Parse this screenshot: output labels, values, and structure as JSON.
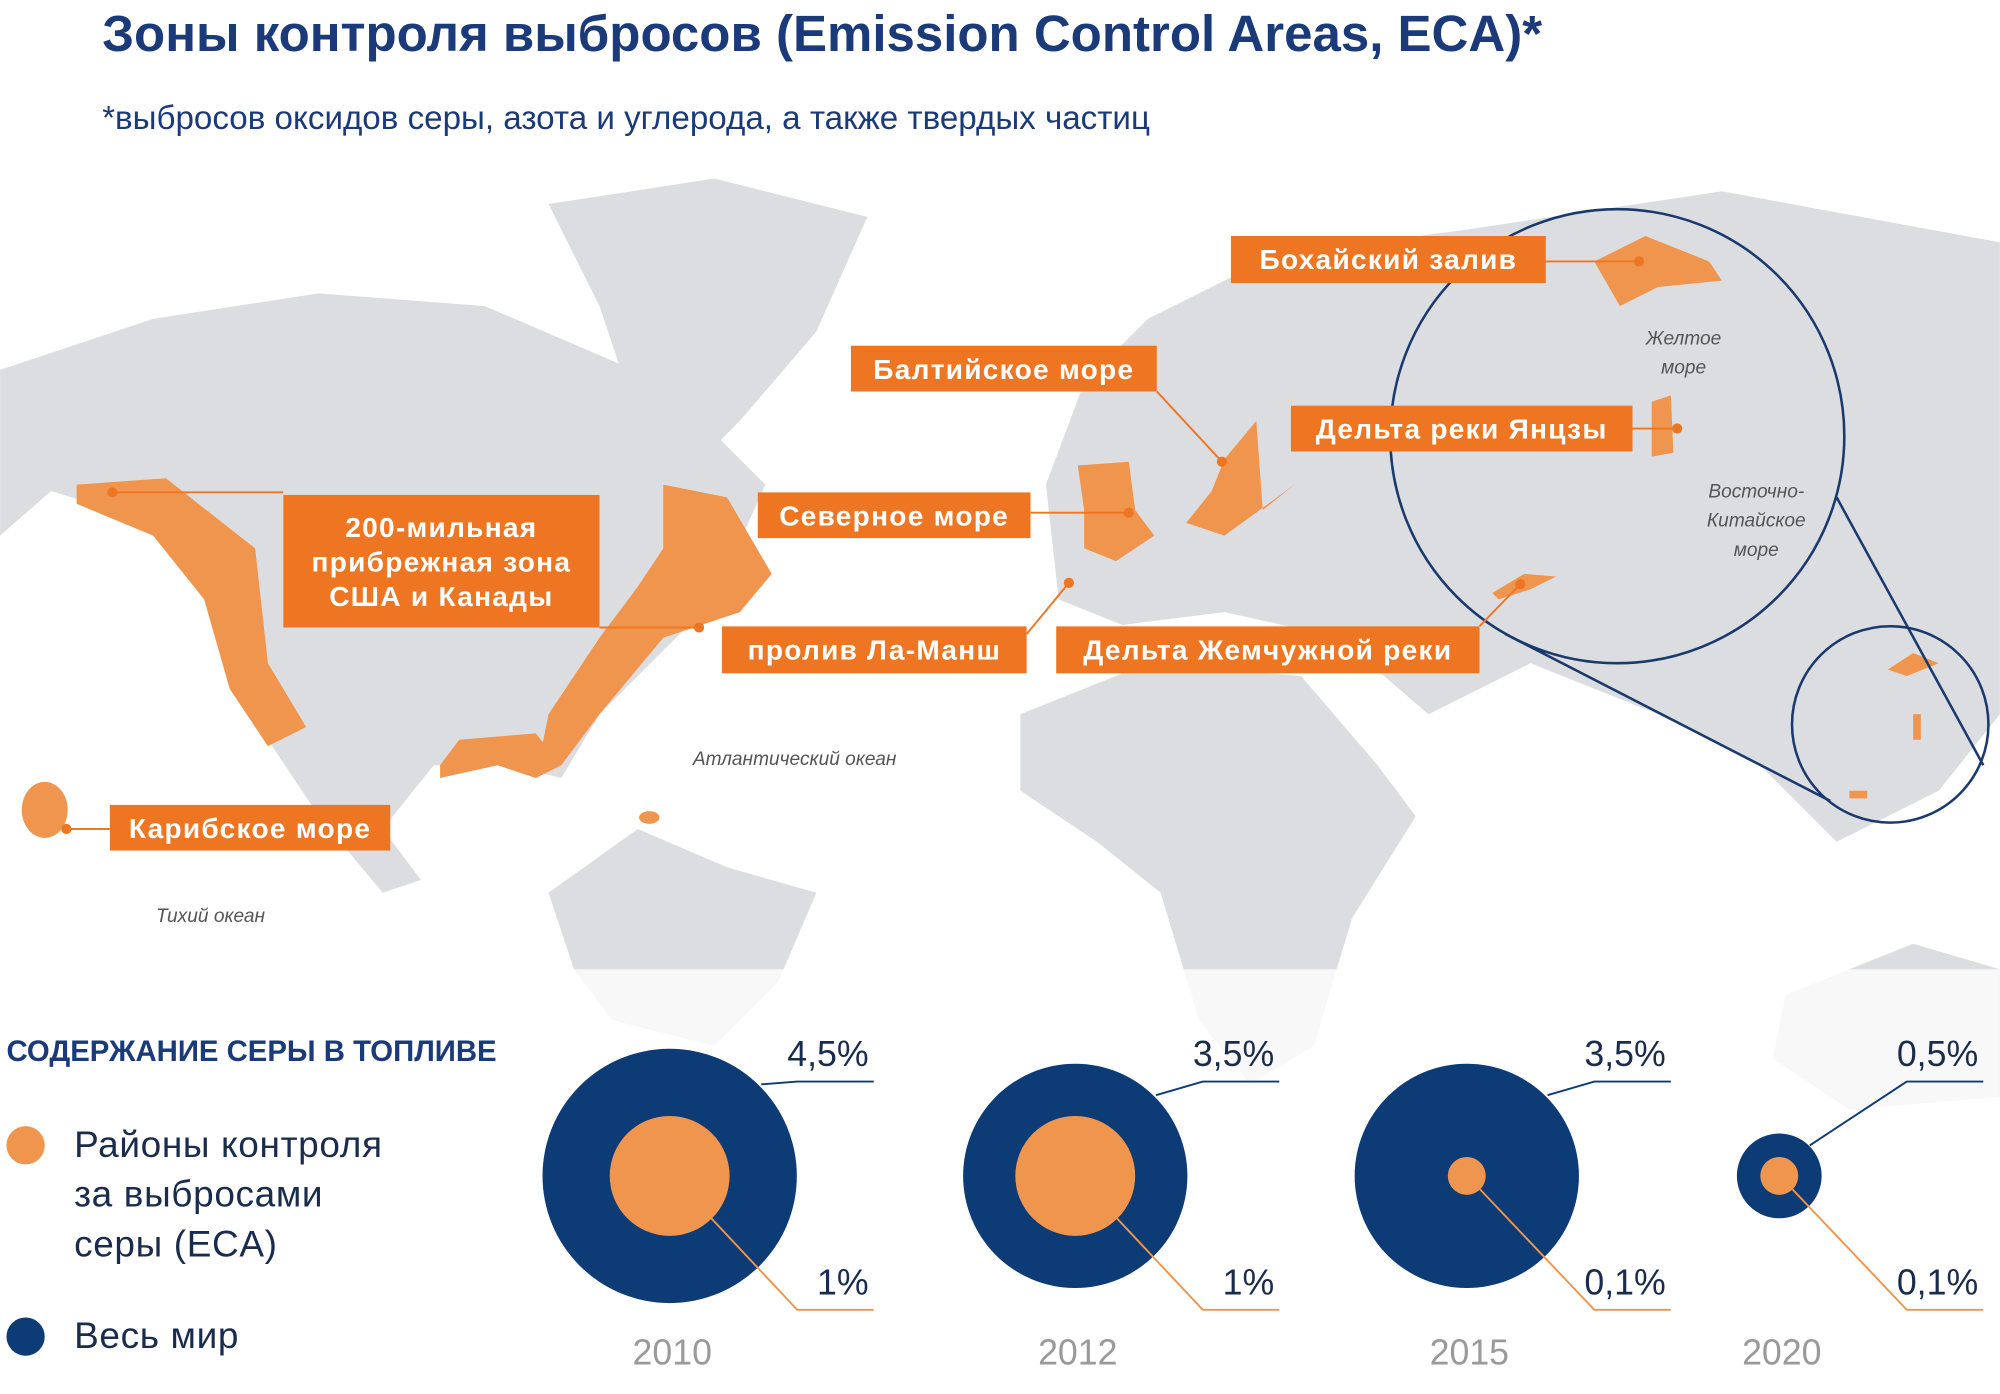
{
  "header": {
    "title": "Зоны контроля выбросов (Emission Control Areas, ECA)*",
    "subtitle": "*выбросов оксидов серы, азота и углерода, а также твердых частиц"
  },
  "map": {
    "zones": [
      "Бохайский залив",
      "Балтийское море",
      "Дельта реки Янцзы",
      "200-мильная\nприбрежная зона\nСША и Канады",
      "Северное море",
      "пролив Ла-Манш",
      "Дельта Жемчужной реки",
      "Карибское море"
    ],
    "places": [
      "Атлантический океан",
      "Тихий океан",
      "Желтое\nморе",
      "Восточно-\nКитайское\nморе"
    ]
  },
  "chart_data": {
    "type": "nested-circle",
    "title": "СОДЕРЖАНИЕ СЕРЫ В ТОПЛИВЕ",
    "categories": [
      "2010",
      "2012",
      "2015",
      "2020"
    ],
    "series": [
      {
        "name": "Районы контроля\nза выбросами\nсеры (ECA)",
        "color": "#f0954d",
        "values": [
          1,
          1,
          0.1,
          0.1
        ],
        "value_labels": [
          "1%",
          "1%",
          "0,1%",
          "0,1%"
        ]
      },
      {
        "name": "Весь мир",
        "color": "#0d3b76",
        "values": [
          4.5,
          3.5,
          3.5,
          0.5
        ],
        "value_labels": [
          "4,5%",
          "3,5%",
          "3,5%",
          "0,5%"
        ]
      }
    ]
  }
}
